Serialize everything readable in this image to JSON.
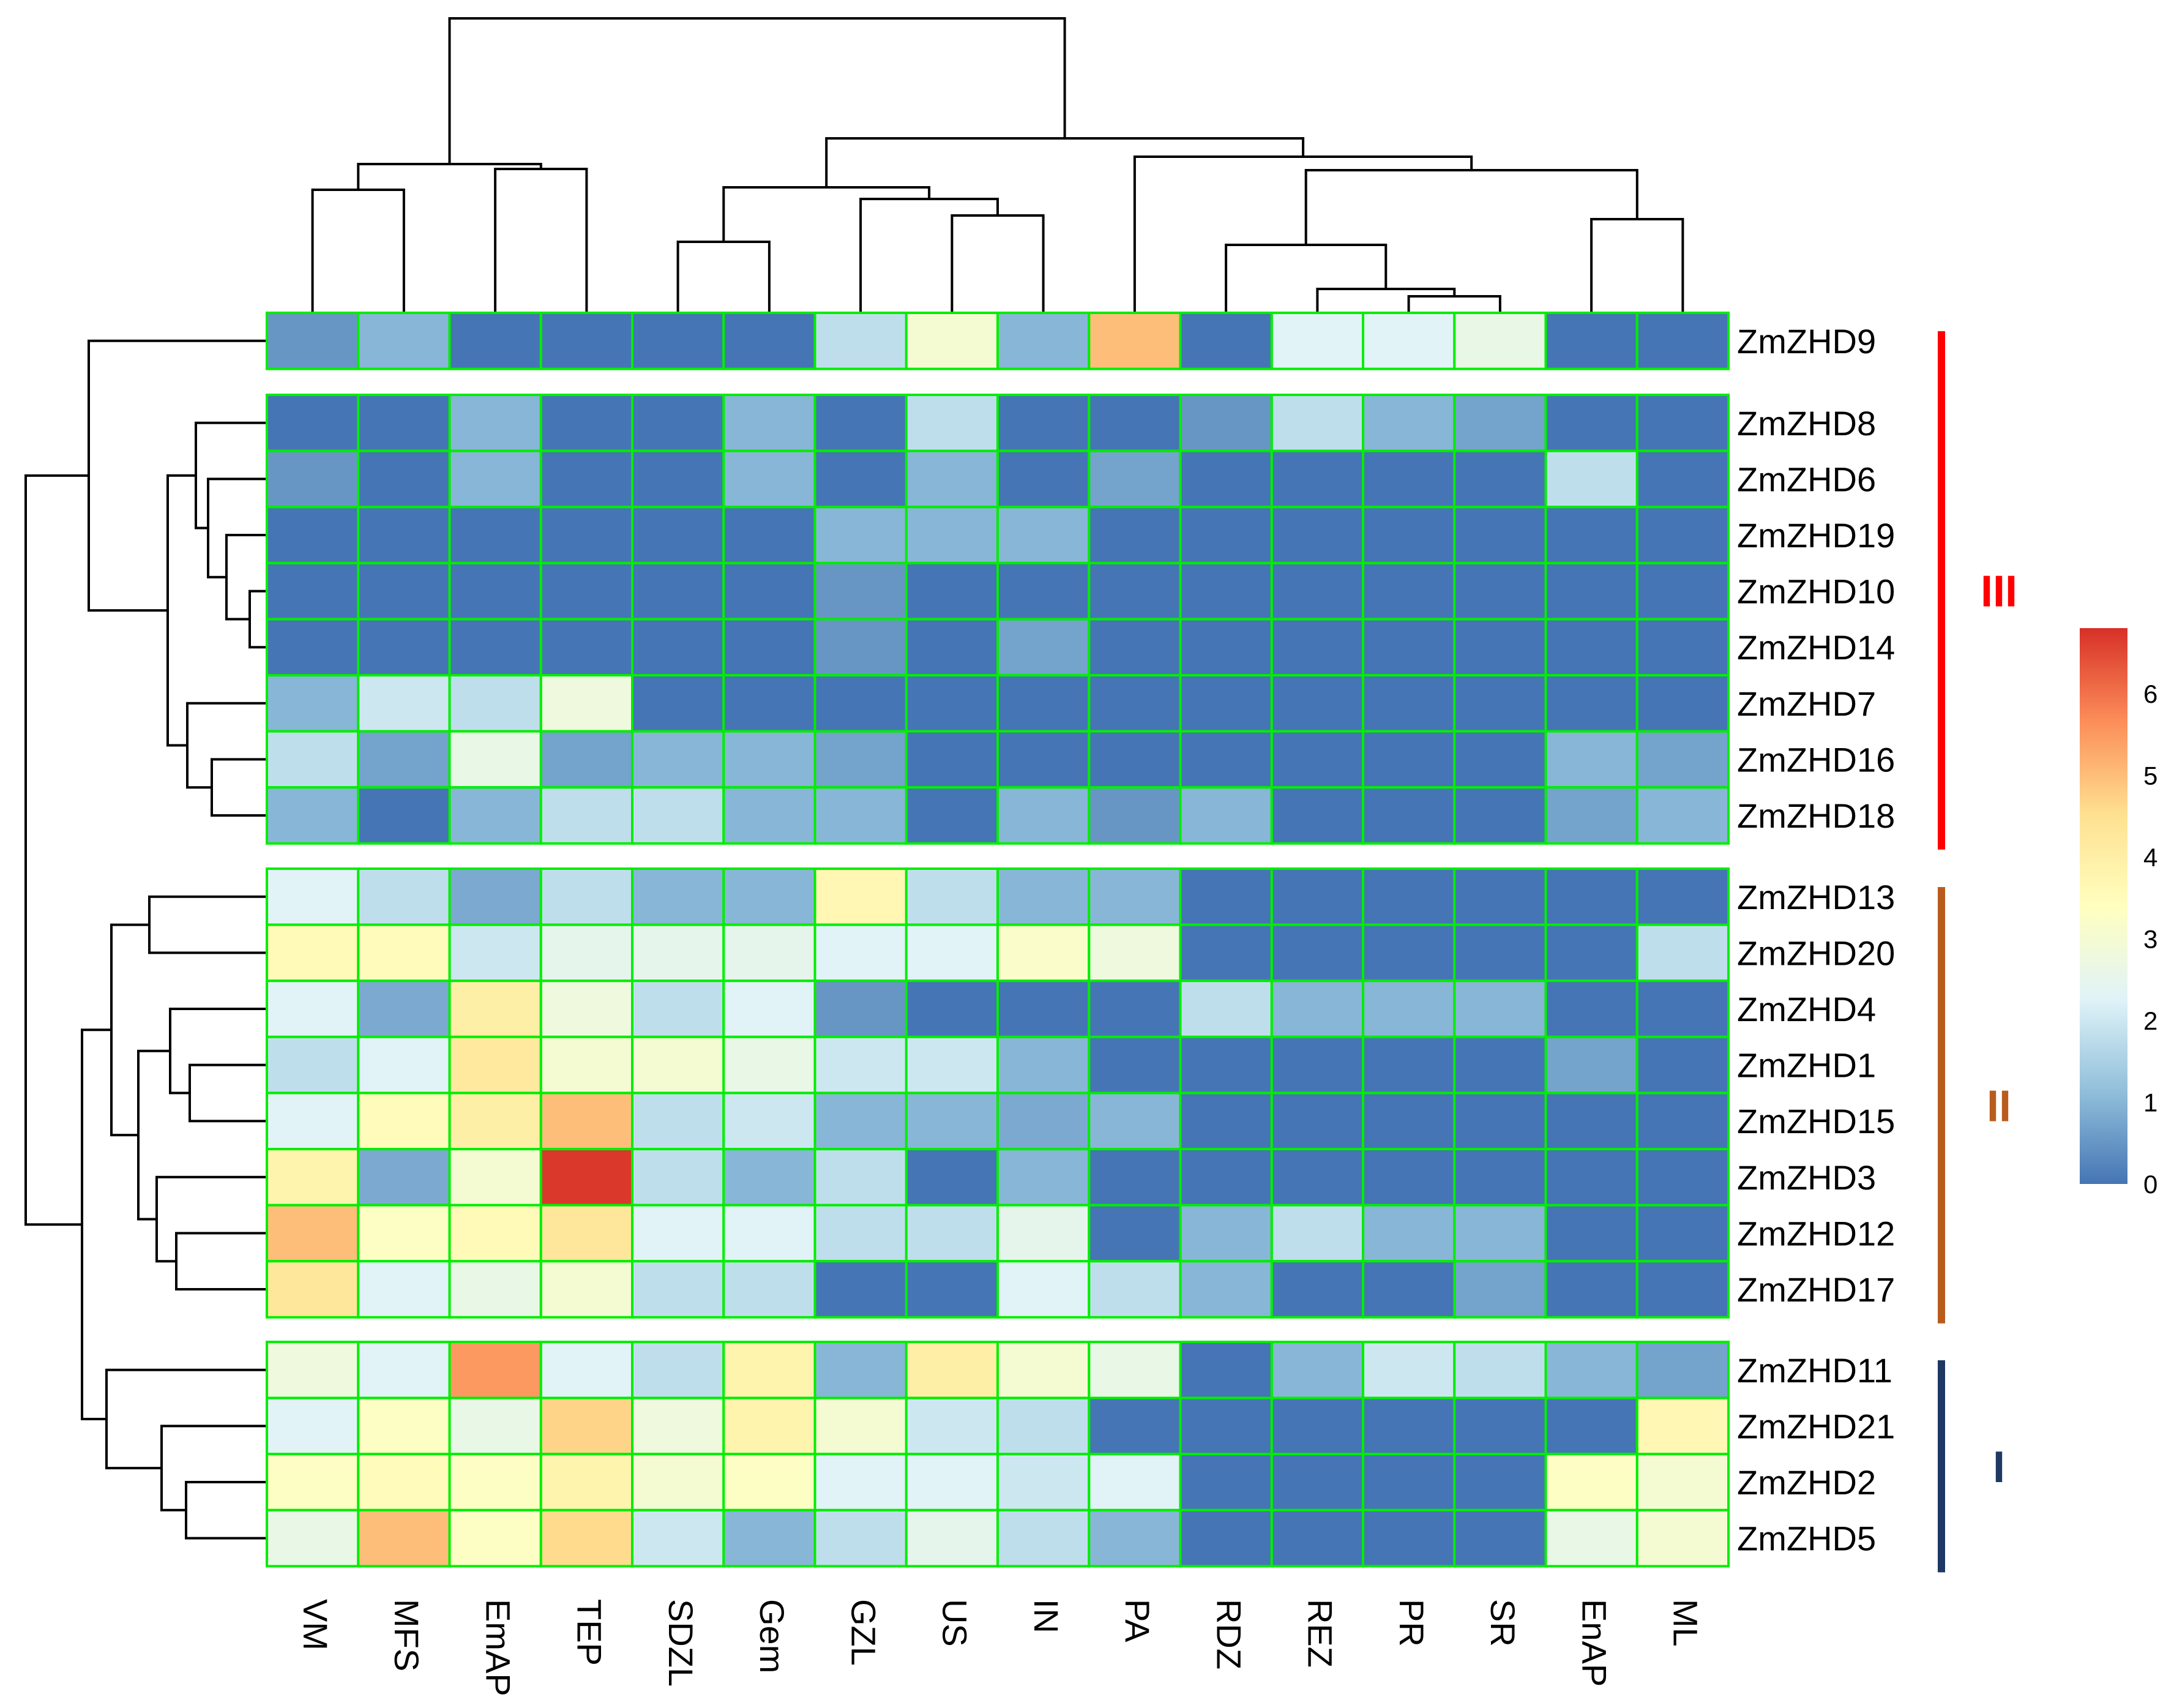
{
  "chart_data": {
    "type": "heatmap",
    "title": "",
    "columns": [
      "VM",
      "MFS",
      "EmAP",
      "TEP",
      "SDZL",
      "Gem",
      "GZL",
      "US",
      "IN",
      "PA",
      "RDZ",
      "REZ",
      "PR",
      "SR",
      "EnAP",
      "ML"
    ],
    "rows": [
      "ZmZHD9",
      "ZmZHD8",
      "ZmZHD6",
      "ZmZHD19",
      "ZmZHD10",
      "ZmZHD14",
      "ZmZHD7",
      "ZmZHD16",
      "ZmZHD18",
      "ZmZHD13",
      "ZmZHD20",
      "ZmZHD4",
      "ZmZHD1",
      "ZmZHD15",
      "ZmZHD3",
      "ZmZHD12",
      "ZmZHD17",
      "ZmZHD11",
      "ZmZHD21",
      "ZmZHD2",
      "ZmZHD5"
    ],
    "values": [
      [
        0.5,
        1.0,
        0,
        0,
        0,
        0,
        1.8,
        3.0,
        1.0,
        5.0,
        0,
        2.3,
        2.3,
        2.6,
        0,
        0
      ],
      [
        0,
        0,
        1.0,
        0,
        0,
        1.0,
        0,
        1.8,
        0,
        0,
        0.5,
        1.8,
        1.0,
        0.7,
        0,
        0
      ],
      [
        0.5,
        0,
        1.0,
        0,
        0,
        1.0,
        0,
        1.0,
        0,
        0.7,
        0,
        0,
        0,
        0,
        1.8,
        0
      ],
      [
        0,
        0,
        0,
        0,
        0,
        0,
        1.0,
        1.0,
        1.0,
        0,
        0,
        0,
        0,
        0,
        0,
        0
      ],
      [
        0,
        0,
        0,
        0,
        0,
        0,
        0.5,
        0,
        0,
        0,
        0,
        0,
        0,
        0,
        0,
        0
      ],
      [
        0,
        0,
        0,
        0,
        0,
        0,
        0.5,
        0,
        0.7,
        0,
        0,
        0,
        0,
        0,
        0,
        0
      ],
      [
        1.0,
        2.0,
        1.8,
        2.8,
        0,
        0,
        0,
        0,
        0,
        0,
        0,
        0,
        0,
        0,
        0,
        0
      ],
      [
        1.8,
        0.7,
        2.6,
        0.7,
        1.0,
        1.0,
        0.7,
        0,
        0,
        0,
        0,
        0,
        0,
        0,
        1.0,
        0.7
      ],
      [
        1.0,
        0,
        1.0,
        1.8,
        1.8,
        1.0,
        1.0,
        0,
        1.0,
        0.5,
        1.0,
        0,
        0,
        0,
        0.7,
        1.0
      ],
      [
        2.3,
        1.8,
        0.8,
        1.8,
        1.0,
        1.0,
        3.7,
        1.8,
        1.0,
        1.0,
        0,
        0,
        0,
        0,
        0,
        0
      ],
      [
        3.6,
        3.5,
        2.0,
        2.5,
        2.5,
        2.5,
        2.3,
        2.3,
        3.2,
        2.8,
        0,
        0,
        0,
        0,
        0,
        1.8
      ],
      [
        2.3,
        0.8,
        4.0,
        2.8,
        1.8,
        2.3,
        0.5,
        0,
        0,
        0,
        1.8,
        1.0,
        1.0,
        1.0,
        0,
        0
      ],
      [
        1.8,
        2.3,
        4.2,
        3.0,
        3.0,
        2.6,
        2.0,
        2.0,
        1.0,
        0,
        0,
        0,
        0,
        0,
        0.7,
        0
      ],
      [
        2.3,
        3.5,
        4.0,
        5.0,
        1.8,
        2.0,
        1.0,
        1.0,
        0.8,
        1.0,
        0,
        0,
        0,
        0,
        0,
        0
      ],
      [
        3.8,
        0.8,
        3.0,
        6.7,
        1.8,
        1.0,
        1.8,
        0,
        1.0,
        0,
        0,
        0,
        0,
        0,
        0,
        0
      ],
      [
        5.0,
        3.3,
        3.6,
        4.3,
        2.3,
        2.3,
        1.8,
        1.8,
        2.5,
        0,
        1.0,
        1.8,
        1.0,
        1.0,
        0,
        0
      ],
      [
        4.3,
        2.3,
        2.6,
        3.0,
        1.8,
        1.8,
        0,
        0,
        2.3,
        1.8,
        1.0,
        0,
        0,
        0.7,
        0,
        0
      ],
      [
        2.8,
        2.3,
        5.5,
        2.3,
        1.8,
        3.8,
        1.0,
        4.0,
        3.0,
        2.6,
        0,
        1.0,
        2.0,
        1.8,
        1.0,
        0.7
      ],
      [
        2.3,
        3.3,
        2.6,
        4.7,
        2.8,
        3.8,
        3.0,
        2.0,
        1.8,
        0,
        0,
        0,
        0,
        0,
        0,
        3.7
      ],
      [
        3.3,
        3.5,
        3.3,
        3.8,
        3.0,
        3.3,
        2.3,
        2.3,
        2.0,
        2.3,
        0,
        0,
        0,
        0,
        3.3,
        3.0
      ],
      [
        2.6,
        5.0,
        3.3,
        4.6,
        2.0,
        1.0,
        1.8,
        2.5,
        1.8,
        1.0,
        0,
        0,
        0,
        0,
        2.6,
        3.0
      ]
    ],
    "row_groups": [
      {
        "label": "III",
        "color": "#ff0000",
        "rows": [
          "ZmZHD9",
          "ZmZHD8",
          "ZmZHD6",
          "ZmZHD19",
          "ZmZHD10",
          "ZmZHD14",
          "ZmZHD7",
          "ZmZHD16",
          "ZmZHD18"
        ]
      },
      {
        "label": "II",
        "color": "#b85c1e",
        "rows": [
          "ZmZHD13",
          "ZmZHD20",
          "ZmZHD4",
          "ZmZHD1",
          "ZmZHD15",
          "ZmZHD3",
          "ZmZHD12",
          "ZmZHD17"
        ]
      },
      {
        "label": "I",
        "color": "#1f3864",
        "rows": [
          "ZmZHD11",
          "ZmZHD21",
          "ZmZHD2",
          "ZmZHD5"
        ]
      }
    ],
    "legend": {
      "position": "right",
      "ticks": [
        "0",
        "1",
        "2",
        "3",
        "4",
        "5",
        "6"
      ],
      "range": [
        0,
        6.8
      ],
      "colors": [
        "#4575b4",
        "#91bfdb",
        "#e0f3f8",
        "#ffffbf",
        "#fee090",
        "#fc8d59",
        "#d73027"
      ]
    },
    "cell_border_color": "#00ee00",
    "dendrograms": {
      "columns": true,
      "rows": true
    }
  }
}
